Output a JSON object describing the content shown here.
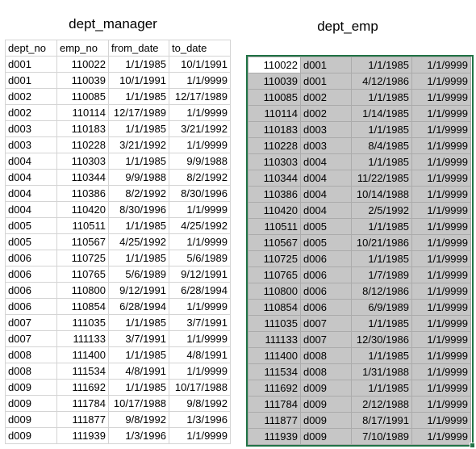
{
  "left": {
    "title": "dept_manager",
    "headers": [
      "dept_no",
      "emp_no",
      "from_date",
      "to_date"
    ],
    "rows": [
      [
        "d001",
        "110022",
        "1/1/1985",
        "10/1/1991"
      ],
      [
        "d001",
        "110039",
        "10/1/1991",
        "1/1/9999"
      ],
      [
        "d002",
        "110085",
        "1/1/1985",
        "12/17/1989"
      ],
      [
        "d002",
        "110114",
        "12/17/1989",
        "1/1/9999"
      ],
      [
        "d003",
        "110183",
        "1/1/1985",
        "3/21/1992"
      ],
      [
        "d003",
        "110228",
        "3/21/1992",
        "1/1/9999"
      ],
      [
        "d004",
        "110303",
        "1/1/1985",
        "9/9/1988"
      ],
      [
        "d004",
        "110344",
        "9/9/1988",
        "8/2/1992"
      ],
      [
        "d004",
        "110386",
        "8/2/1992",
        "8/30/1996"
      ],
      [
        "d004",
        "110420",
        "8/30/1996",
        "1/1/9999"
      ],
      [
        "d005",
        "110511",
        "1/1/1985",
        "4/25/1992"
      ],
      [
        "d005",
        "110567",
        "4/25/1992",
        "1/1/9999"
      ],
      [
        "d006",
        "110725",
        "1/1/1985",
        "5/6/1989"
      ],
      [
        "d006",
        "110765",
        "5/6/1989",
        "9/12/1991"
      ],
      [
        "d006",
        "110800",
        "9/12/1991",
        "6/28/1994"
      ],
      [
        "d006",
        "110854",
        "6/28/1994",
        "1/1/9999"
      ],
      [
        "d007",
        "111035",
        "1/1/1985",
        "3/7/1991"
      ],
      [
        "d007",
        "111133",
        "3/7/1991",
        "1/1/9999"
      ],
      [
        "d008",
        "111400",
        "1/1/1985",
        "4/8/1991"
      ],
      [
        "d008",
        "111534",
        "4/8/1991",
        "1/1/9999"
      ],
      [
        "d009",
        "111692",
        "1/1/1985",
        "10/17/1988"
      ],
      [
        "d009",
        "111784",
        "10/17/1988",
        "9/8/1992"
      ],
      [
        "d009",
        "111877",
        "9/8/1992",
        "1/3/1996"
      ],
      [
        "d009",
        "111939",
        "1/3/1996",
        "1/1/9999"
      ]
    ]
  },
  "right": {
    "title": "dept_emp",
    "rows": [
      [
        "110022",
        "d001",
        "1/1/1985",
        "1/1/9999"
      ],
      [
        "110039",
        "d001",
        "4/12/1986",
        "1/1/9999"
      ],
      [
        "110085",
        "d002",
        "1/1/1985",
        "1/1/9999"
      ],
      [
        "110114",
        "d002",
        "1/14/1985",
        "1/1/9999"
      ],
      [
        "110183",
        "d003",
        "1/1/1985",
        "1/1/9999"
      ],
      [
        "110228",
        "d003",
        "8/4/1985",
        "1/1/9999"
      ],
      [
        "110303",
        "d004",
        "1/1/1985",
        "1/1/9999"
      ],
      [
        "110344",
        "d004",
        "11/22/1985",
        "1/1/9999"
      ],
      [
        "110386",
        "d004",
        "10/14/1988",
        "1/1/9999"
      ],
      [
        "110420",
        "d004",
        "2/5/1992",
        "1/1/9999"
      ],
      [
        "110511",
        "d005",
        "1/1/1985",
        "1/1/9999"
      ],
      [
        "110567",
        "d005",
        "10/21/1986",
        "1/1/9999"
      ],
      [
        "110725",
        "d006",
        "1/1/1985",
        "1/1/9999"
      ],
      [
        "110765",
        "d006",
        "1/7/1989",
        "1/1/9999"
      ],
      [
        "110800",
        "d006",
        "8/12/1986",
        "1/1/9999"
      ],
      [
        "110854",
        "d006",
        "6/9/1989",
        "1/1/9999"
      ],
      [
        "111035",
        "d007",
        "1/1/1985",
        "1/1/9999"
      ],
      [
        "111133",
        "d007",
        "12/30/1986",
        "1/1/9999"
      ],
      [
        "111400",
        "d008",
        "1/1/1985",
        "1/1/9999"
      ],
      [
        "111534",
        "d008",
        "1/31/1988",
        "1/1/9999"
      ],
      [
        "111692",
        "d009",
        "1/1/1985",
        "1/1/9999"
      ],
      [
        "111784",
        "d009",
        "2/12/1988",
        "1/1/9999"
      ],
      [
        "111877",
        "d009",
        "8/17/1991",
        "1/1/9999"
      ],
      [
        "111939",
        "d009",
        "7/10/1989",
        "1/1/9999"
      ]
    ]
  },
  "colors": {
    "selection_border": "#217346",
    "selection_fill": "#c6c6c6",
    "gridline": "#d4d4d4"
  }
}
